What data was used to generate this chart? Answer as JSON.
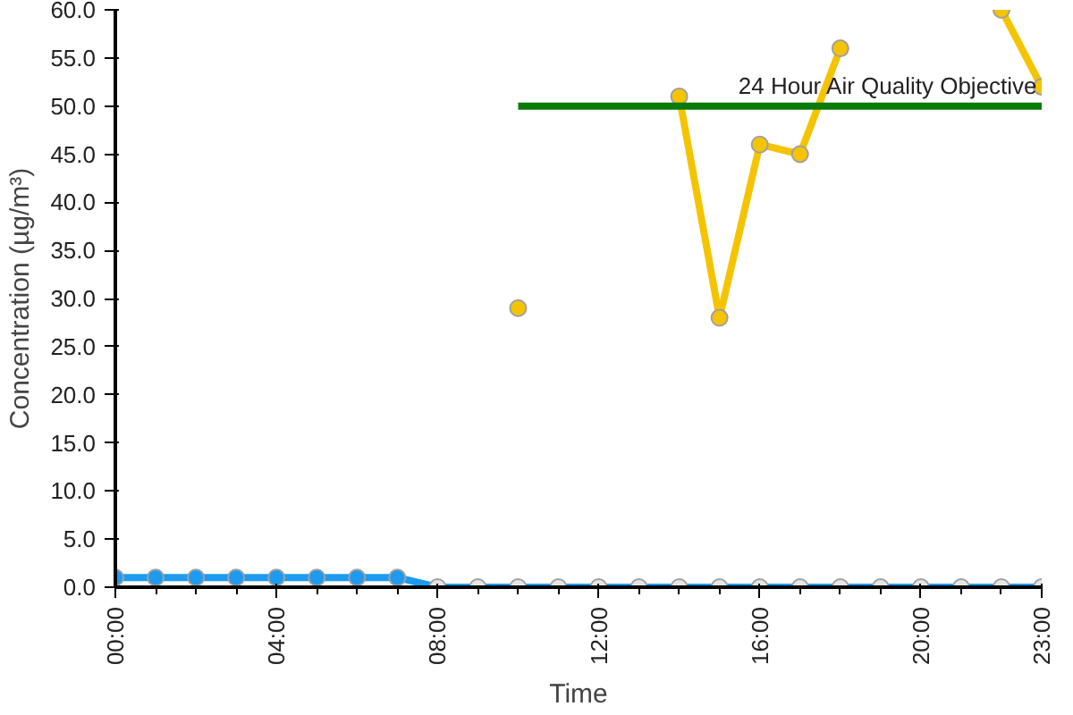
{
  "chart_data": {
    "type": "line",
    "xlabel": "Time",
    "ylabel": "Concentration (µg/m³)",
    "x": [
      0,
      1,
      2,
      3,
      4,
      5,
      6,
      7,
      8,
      9,
      10,
      11,
      12,
      13,
      14,
      15,
      16,
      17,
      18,
      19,
      20,
      21,
      22,
      23
    ],
    "series": [
      {
        "color": "#f5c400",
        "x": [
          10,
          11,
          12,
          13,
          14,
          15,
          16,
          17,
          18,
          19,
          20,
          21,
          22,
          23
        ],
        "values": [
          29,
          null,
          null,
          null,
          51,
          28,
          46,
          45,
          56,
          null,
          null,
          null,
          60,
          52
        ]
      },
      {
        "color": "#1e9bf0",
        "values": [
          1,
          1,
          1,
          1,
          1,
          1,
          1,
          1,
          0,
          0,
          0,
          0,
          0,
          0,
          0,
          0,
          0,
          0,
          0,
          0,
          0,
          0,
          0,
          0
        ],
        "colors": [
          "#1e9bf0",
          "#1e9bf0",
          "#1e9bf0",
          "#1e9bf0",
          "#1e9bf0",
          "#1e9bf0",
          "#1e9bf0",
          "#1e9bf0",
          "#e6e6e6",
          "#e6e6e6",
          "#e6e6e6",
          "#e6e6e6",
          "#e6e6e6",
          "#e6e6e6",
          "#e6e6e6",
          "#e6e6e6",
          "#e6e6e6",
          "#e6e6e6",
          "#e6e6e6",
          "#e6e6e6",
          "#e6e6e6",
          "#e6e6e6",
          "#e6e6e6",
          "#e6e6e6"
        ]
      },
      {
        "name": "24 Hour Air Quality Objective",
        "color": "#0a7a0a",
        "x": [
          10,
          23
        ],
        "values": [
          50,
          50
        ],
        "marker": "none"
      }
    ],
    "xlim": [
      0,
      23
    ],
    "ylim": [
      0,
      60
    ],
    "xticks": [
      {
        "value": 0,
        "label": "00:00"
      },
      {
        "value": 4,
        "label": "04:00"
      },
      {
        "value": 8,
        "label": "08:00"
      },
      {
        "value": 12,
        "label": "12:00"
      },
      {
        "value": 16,
        "label": "16:00"
      },
      {
        "value": 20,
        "label": "20:00"
      },
      {
        "value": 23,
        "label": "23:00"
      }
    ],
    "yticks": [
      {
        "value": 0,
        "label": "0.0"
      },
      {
        "value": 5,
        "label": "5.0"
      },
      {
        "value": 10,
        "label": "10.0"
      },
      {
        "value": 15,
        "label": "15.0"
      },
      {
        "value": 20,
        "label": "20.0"
      },
      {
        "value": 25,
        "label": "25.0"
      },
      {
        "value": 30,
        "label": "30.0"
      },
      {
        "value": 35,
        "label": "35.0"
      },
      {
        "value": 40,
        "label": "40.0"
      },
      {
        "value": 45,
        "label": "45.0"
      },
      {
        "value": 50,
        "label": "50.0"
      },
      {
        "value": 55,
        "label": "55.0"
      },
      {
        "value": 60,
        "label": "60.0"
      }
    ],
    "grid": false,
    "legend": false,
    "marker": "circle",
    "line_style": "solid"
  }
}
